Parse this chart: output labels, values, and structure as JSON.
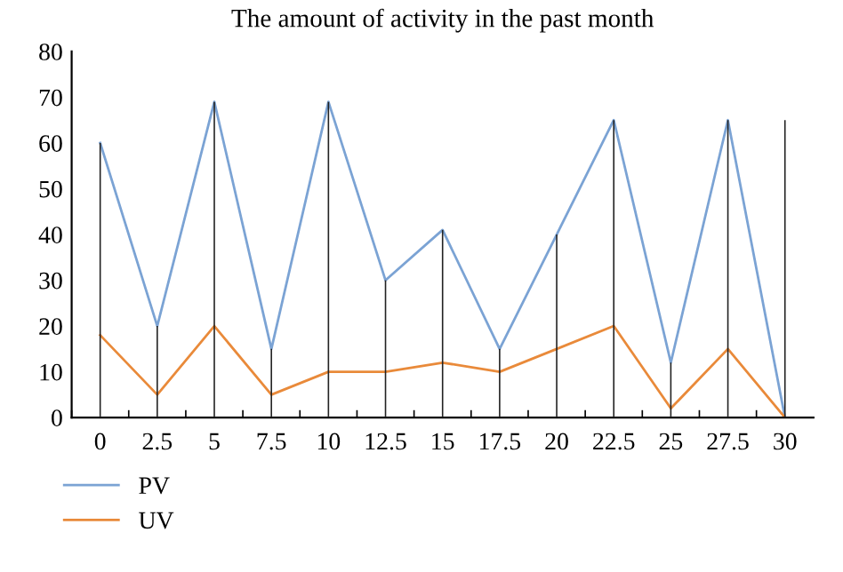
{
  "chart_data": {
    "type": "line",
    "title": "The amount of activity in the past month",
    "categories": [
      "0",
      "2.5",
      "5",
      "7.5",
      "10",
      "12.5",
      "15",
      "17.5",
      "20",
      "22.5",
      "25",
      "27.5",
      "30"
    ],
    "series": [
      {
        "type": "bar",
        "color": "#222222",
        "values": [
          60,
          20,
          69,
          15,
          69,
          30,
          41,
          15,
          40,
          65,
          12,
          65,
          65
        ]
      },
      {
        "name": "PV",
        "color": "#7ba3d4",
        "values": [
          60,
          20,
          69,
          15,
          69,
          30,
          41,
          15,
          40,
          65,
          12,
          65,
          0
        ]
      },
      {
        "name": "UV",
        "color": "#e98a3a",
        "values": [
          18,
          5,
          20,
          5,
          10,
          10,
          12,
          10,
          15,
          20,
          2,
          15,
          0
        ]
      }
    ],
    "ylim": [
      0,
      80
    ],
    "yticks": [
      0,
      10,
      20,
      30,
      40,
      50,
      60,
      70,
      80
    ],
    "grid": false,
    "legend": "bottom left",
    "marker": "none",
    "line_style": "solid"
  }
}
